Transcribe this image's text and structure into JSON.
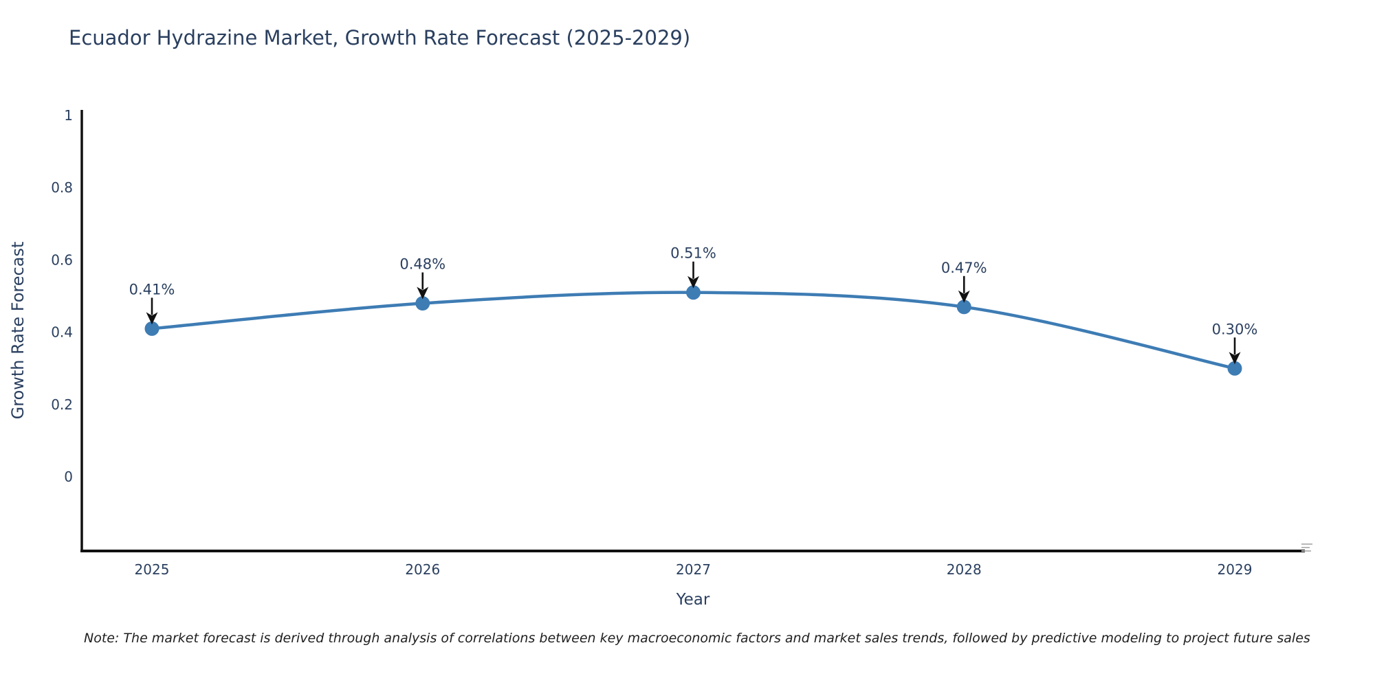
{
  "note": "Note: The market forecast is derived through analysis of correlations between key macroeconomic factors and market sales trends, followed by predictive modeling to project future sales",
  "chart_data": {
    "type": "line",
    "title": "Ecuador Hydrazine Market, Growth Rate Forecast (2025-2029)",
    "xlabel": "Year",
    "ylabel": "Growth Rate Forecast",
    "categories": [
      "2025",
      "2026",
      "2027",
      "2028",
      "2029"
    ],
    "series": [
      {
        "name": "Growth Rate Forecast",
        "values": [
          0.41,
          0.48,
          0.51,
          0.47,
          0.3
        ]
      }
    ],
    "point_labels": [
      "0.41%",
      "0.48%",
      "0.51%",
      "0.47%",
      "0.30%"
    ],
    "yticks": [
      "0",
      "0.2",
      "0.4",
      "0.6",
      "0.8",
      "1"
    ],
    "ytick_values": [
      0,
      0.2,
      0.4,
      0.6,
      0.8,
      1
    ],
    "ylim": [
      -0.205,
      1.015
    ],
    "line_shape": "spline",
    "grid": false,
    "legend": "none",
    "colors": {
      "line": "#3e7cb4",
      "marker": "#3e7cb4",
      "axis": "#111111",
      "tick_text": "#2a3f5f",
      "title_text": "#2a3f5f",
      "annotation_text": "#2a3f5f",
      "arrow": "#111111",
      "note_text": "#1f1f1f"
    }
  }
}
